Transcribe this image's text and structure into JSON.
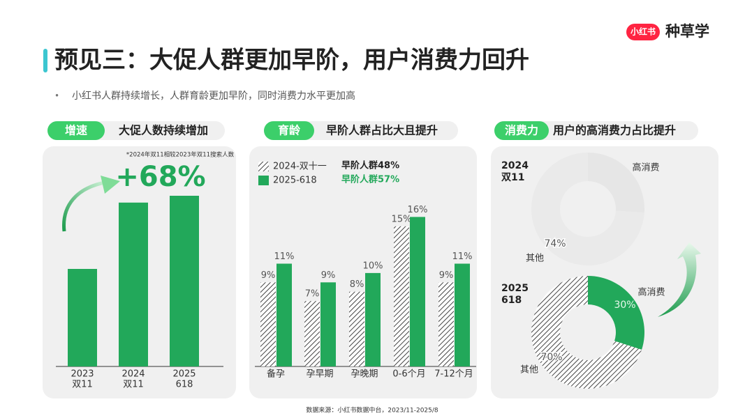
{
  "header": {
    "logo": "小红书",
    "brand": "种草学",
    "title": "预见三：大促人群更加早阶，用户消费力回升",
    "bullet": "小红书人群持续增长，人群育龄更加早阶，同时消费力水平更加高"
  },
  "panels": [
    {
      "tag": "增速",
      "heading": "大促人数持续增加"
    },
    {
      "tag": "育龄",
      "heading": "早阶人群占比大且提升"
    },
    {
      "tag": "消费力",
      "heading": "用户的高消费力占比提升"
    }
  ],
  "chart_data": [
    {
      "type": "bar",
      "categories": [
        [
          "2023",
          "双11"
        ],
        [
          "2024",
          "双11"
        ],
        [
          "2025",
          "618"
        ]
      ],
      "values": [
        100,
        168,
        175
      ],
      "color": "#22a85a",
      "ylim": [
        0,
        190
      ],
      "annotation": "+68%",
      "note": "*2024年双11相较2023年双11搜索人数"
    },
    {
      "type": "bar",
      "categories": [
        "备孕",
        "孕早期",
        "孕晚期",
        "0-6个月",
        "7-12个月"
      ],
      "ylim": [
        0,
        17
      ],
      "series": [
        {
          "name": "2024-双十一",
          "color": "#444444",
          "pattern": "hatch",
          "note": "早阶人群48%",
          "values": [
            9,
            7,
            8,
            15,
            9
          ],
          "value_labels": [
            "9%",
            "7%",
            "8%",
            "15%",
            "9%"
          ]
        },
        {
          "name": "2025-618",
          "color": "#22a85a",
          "note": "早阶人群57%",
          "values": [
            11,
            9,
            10,
            16,
            11
          ],
          "value_labels": [
            "11%",
            "9%",
            "10%",
            "16%",
            "11%"
          ]
        }
      ]
    },
    {
      "type": "pie",
      "donut": true,
      "pies": [
        {
          "name": [
            "2024",
            "双11"
          ],
          "categories": [
            "高消费",
            "其他"
          ],
          "values": [
            26,
            74
          ],
          "value_labels": [
            null,
            "74%"
          ],
          "colors": [
            "#e6e6e6",
            "#eaeaea"
          ],
          "hatched": [
            false,
            false
          ]
        },
        {
          "name": [
            "2025",
            "618"
          ],
          "categories": [
            "高消费",
            "其他"
          ],
          "values": [
            30,
            70
          ],
          "value_labels": [
            "30%",
            "70%"
          ],
          "colors": [
            "#22a85a",
            "#444444"
          ],
          "hatched": [
            false,
            true
          ]
        }
      ]
    }
  ],
  "source": "数据来源：小红书数据中台，2023/11-2025/8"
}
